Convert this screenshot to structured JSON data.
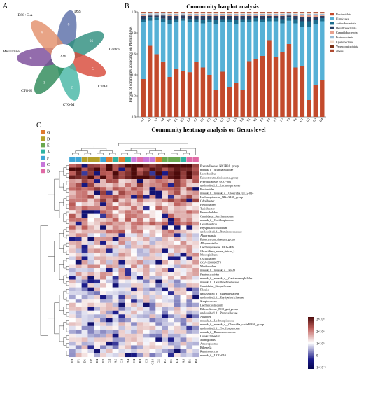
{
  "panels": {
    "a": "A",
    "b": "B",
    "c": "C"
  },
  "venn": {
    "center": "226",
    "petals": [
      {
        "name": "DSS",
        "value": "8",
        "color": "#5b6fa8"
      },
      {
        "name": "Control",
        "value": "66",
        "color": "#2f8f7f"
      },
      {
        "name": "CTO-L",
        "value": "5",
        "color": "#d84a3a"
      },
      {
        "name": "CTO-M",
        "value": "2",
        "color": "#48b7a6"
      },
      {
        "name": "CTO-H",
        "value": "1",
        "color": "#2e8a59"
      },
      {
        "name": "Mesalazine",
        "value": "6",
        "color": "#7b4c9a"
      },
      {
        "name": "DSS+C.A",
        "value": "4",
        "color": "#e3906b"
      }
    ]
  },
  "barplot": {
    "title": "Community barplot analysis",
    "ylabel": "Percent of community abundance on Phylum level",
    "yticks": [
      "0.0",
      "0.2",
      "0.4",
      "0.6",
      "0.8",
      "1.0"
    ],
    "legend": [
      {
        "name": "Bacteroidota",
        "color": "#c34a2c"
      },
      {
        "name": "Firmicutes",
        "color": "#56b1d6"
      },
      {
        "name": "Actinobacteriota",
        "color": "#1d6e8e"
      },
      {
        "name": "Desulfobacterota",
        "color": "#2a3f63"
      },
      {
        "name": "Campilobacterota",
        "color": "#e8a18e"
      },
      {
        "name": "Proteobacteria",
        "color": "#99bcd6"
      },
      {
        "name": "Cyanobacteria",
        "color": "#f1d9c8"
      },
      {
        "name": "Verrucomicrobiota",
        "color": "#7a2f13"
      },
      {
        "name": "others",
        "color": "#b04a31"
      }
    ]
  },
  "chart_data": {
    "type": "bar",
    "title": "Community barplot analysis",
    "ylabel": "Percent of community abundance on Phylum level",
    "ylim": [
      0,
      1
    ],
    "categories": [
      "A1",
      "A2",
      "A3",
      "A4",
      "B1",
      "B2",
      "B3",
      "B4",
      "C1",
      "C2",
      "C3",
      "C4",
      "D1",
      "D2",
      "D3",
      "D4",
      "E1",
      "E2",
      "E3",
      "E4",
      "F1",
      "F2",
      "F3",
      "F4",
      "G1",
      "G2",
      "G3",
      "G4"
    ],
    "series": [
      {
        "name": "Bacteroidota",
        "values": [
          0.36,
          0.68,
          0.6,
          0.53,
          0.38,
          0.46,
          0.44,
          0.43,
          0.52,
          0.47,
          0.4,
          0.26,
          0.43,
          0.28,
          0.32,
          0.26,
          0.53,
          0.55,
          0.58,
          0.73,
          0.57,
          0.62,
          0.69,
          0.47,
          0.48,
          0.16,
          0.3,
          0.35
        ]
      },
      {
        "name": "Firmicutes",
        "values": [
          0.54,
          0.24,
          0.33,
          0.38,
          0.5,
          0.44,
          0.48,
          0.48,
          0.38,
          0.42,
          0.5,
          0.62,
          0.47,
          0.62,
          0.56,
          0.64,
          0.37,
          0.36,
          0.32,
          0.18,
          0.34,
          0.27,
          0.22,
          0.42,
          0.38,
          0.7,
          0.58,
          0.56
        ]
      },
      {
        "name": "Actinobacteriota",
        "values": [
          0.03,
          0.03,
          0.02,
          0.03,
          0.04,
          0.03,
          0.02,
          0.03,
          0.03,
          0.03,
          0.03,
          0.04,
          0.03,
          0.03,
          0.04,
          0.03,
          0.03,
          0.03,
          0.03,
          0.03,
          0.03,
          0.04,
          0.03,
          0.04,
          0.05,
          0.05,
          0.04,
          0.03
        ]
      },
      {
        "name": "Desulfobacterota",
        "values": [
          0.03,
          0.02,
          0.02,
          0.03,
          0.04,
          0.03,
          0.03,
          0.03,
          0.03,
          0.04,
          0.03,
          0.04,
          0.03,
          0.03,
          0.04,
          0.03,
          0.03,
          0.02,
          0.03,
          0.02,
          0.02,
          0.03,
          0.02,
          0.03,
          0.04,
          0.04,
          0.03,
          0.02
        ]
      },
      {
        "name": "Campilobacterota",
        "values": [
          0.01,
          0.01,
          0.01,
          0.01,
          0.01,
          0.01,
          0.01,
          0.01,
          0.01,
          0.01,
          0.01,
          0.01,
          0.01,
          0.01,
          0.01,
          0.01,
          0.01,
          0.01,
          0.01,
          0.01,
          0.01,
          0.01,
          0.01,
          0.01,
          0.02,
          0.02,
          0.02,
          0.01
        ]
      },
      {
        "name": "Proteobacteria",
        "values": [
          0.01,
          0.01,
          0.01,
          0.01,
          0.01,
          0.01,
          0.01,
          0.01,
          0.01,
          0.01,
          0.01,
          0.01,
          0.01,
          0.01,
          0.01,
          0.01,
          0.01,
          0.01,
          0.01,
          0.01,
          0.01,
          0.01,
          0.01,
          0.01,
          0.01,
          0.01,
          0.01,
          0.01
        ]
      },
      {
        "name": "Cyanobacteria",
        "values": [
          0.01,
          0.005,
          0.005,
          0.005,
          0.01,
          0.01,
          0.005,
          0.01,
          0.01,
          0.01,
          0.01,
          0.01,
          0.01,
          0.01,
          0.01,
          0.01,
          0.01,
          0.01,
          0.01,
          0.01,
          0.01,
          0.01,
          0.005,
          0.01,
          0.01,
          0.01,
          0.01,
          0.01
        ]
      },
      {
        "name": "Verrucomicrobiota",
        "values": [
          0.005,
          0.005,
          0.005,
          0.005,
          0.005,
          0.005,
          0.005,
          0.005,
          0.005,
          0.005,
          0.005,
          0.005,
          0.005,
          0.005,
          0.005,
          0.005,
          0.005,
          0.005,
          0.005,
          0.005,
          0.005,
          0.005,
          0.005,
          0.005,
          0.005,
          0.005,
          0.005,
          0.005
        ]
      },
      {
        "name": "others",
        "values": [
          0.005,
          0.005,
          0.005,
          0.005,
          0.005,
          0.005,
          0.005,
          0.005,
          0.005,
          0.005,
          0.005,
          0.005,
          0.005,
          0.005,
          0.005,
          0.005,
          0.005,
          0.005,
          0.005,
          0.005,
          0.005,
          0.005,
          0.005,
          0.005,
          0.005,
          0.005,
          0.005,
          0.005
        ]
      }
    ]
  },
  "heatmap": {
    "title": "Community heatmap analysis on Genus level",
    "groups": [
      {
        "name": "G",
        "color": "#e07a30"
      },
      {
        "name": "D",
        "color": "#b5a02a"
      },
      {
        "name": "E",
        "color": "#6aa84f"
      },
      {
        "name": "A",
        "color": "#2eb3a2"
      },
      {
        "name": "F",
        "color": "#3ea6d6"
      },
      {
        "name": "C",
        "color": "#c777d9"
      },
      {
        "name": "B",
        "color": "#e06aa6"
      }
    ],
    "columns": [
      "F4",
      "F1",
      "D1",
      "D2",
      "D4",
      "F3",
      "G3",
      "A2",
      "G2",
      "A4",
      "C4",
      "B4",
      "C3",
      "C10",
      "G1",
      "E1",
      "H1",
      "E4",
      "A3",
      "B1",
      "B3"
    ],
    "column_groups": [
      "F",
      "F",
      "D",
      "D",
      "D",
      "F",
      "G",
      "A",
      "G",
      "A",
      "C",
      "B",
      "C",
      "C",
      "G",
      "E",
      "E",
      "E",
      "A",
      "B",
      "B"
    ],
    "rows": [
      "Prevotellaceae_NK3B31_group",
      "norank_f__Muribaculaceae",
      "Lactobacillus",
      "Eubacterium_fissicatena_group",
      "Prevotellaceae_UCG-001",
      "unclassified_f__Lachnospiraceae",
      "Bacteroides",
      "norank_f__norank_o__Clostridia_UCG-014",
      "Lachnospiraceae_NK4A136_group",
      "Odoribacter",
      "Helicobacter",
      "Turicibacter",
      "Enterorhabdus",
      "Candidatus_Saccharimonas",
      "norank_f__Oscillospiraceae",
      "Desulfovibrio",
      "Erysipelatoclostridium",
      "unclassified_f__Ruminococcaceae",
      "Akkermansia",
      "Eubacterium_siraeum_group",
      "Alloprevotella",
      "Lachnospiraceae_UCG-006",
      "Clostridium_sensu_stricto_1",
      "Mucispirillum",
      "Oscillibacter",
      "GCA-900066575",
      "Muribaculum",
      "norank_f__norank_o__RF39",
      "Parabacteroides",
      "norank_f__norank_o__Gastranaerophilales",
      "norank_f__Desulfovibrionaceae",
      "Candidatus_Stoquefichus",
      "Blautia",
      "unclassified_f__Eggerthellaceae",
      "unclassified_f__Erysipelotrichaceae",
      "Streptococcus",
      "Lachnoclostridium",
      "Rikenellaceae_RC9_gut_group",
      "unclassified_f__Prevotellaceae",
      "Alistipes",
      "norank_f__Lachnospiraceae",
      "norank_f__norank_o__Clostridia_vadinBB60_group",
      "unclassified_f__Oscillospiraceae",
      "norank_f__Ruminococcaceae",
      "Colidextribacter",
      "Monoglobus",
      "Anaeroplasma",
      "Rikenella",
      "Ruminococcus",
      "norank_f__UCG-010"
    ],
    "colorbar": {
      "labels": [
        "3×10⁶",
        "2×10⁶",
        "1×10⁵",
        "0",
        "1×10⁻¹"
      ],
      "colors": [
        "#4d0a0a",
        "#c0605c",
        "#ffffff",
        "#1b1b8a",
        "#050550"
      ]
    }
  }
}
